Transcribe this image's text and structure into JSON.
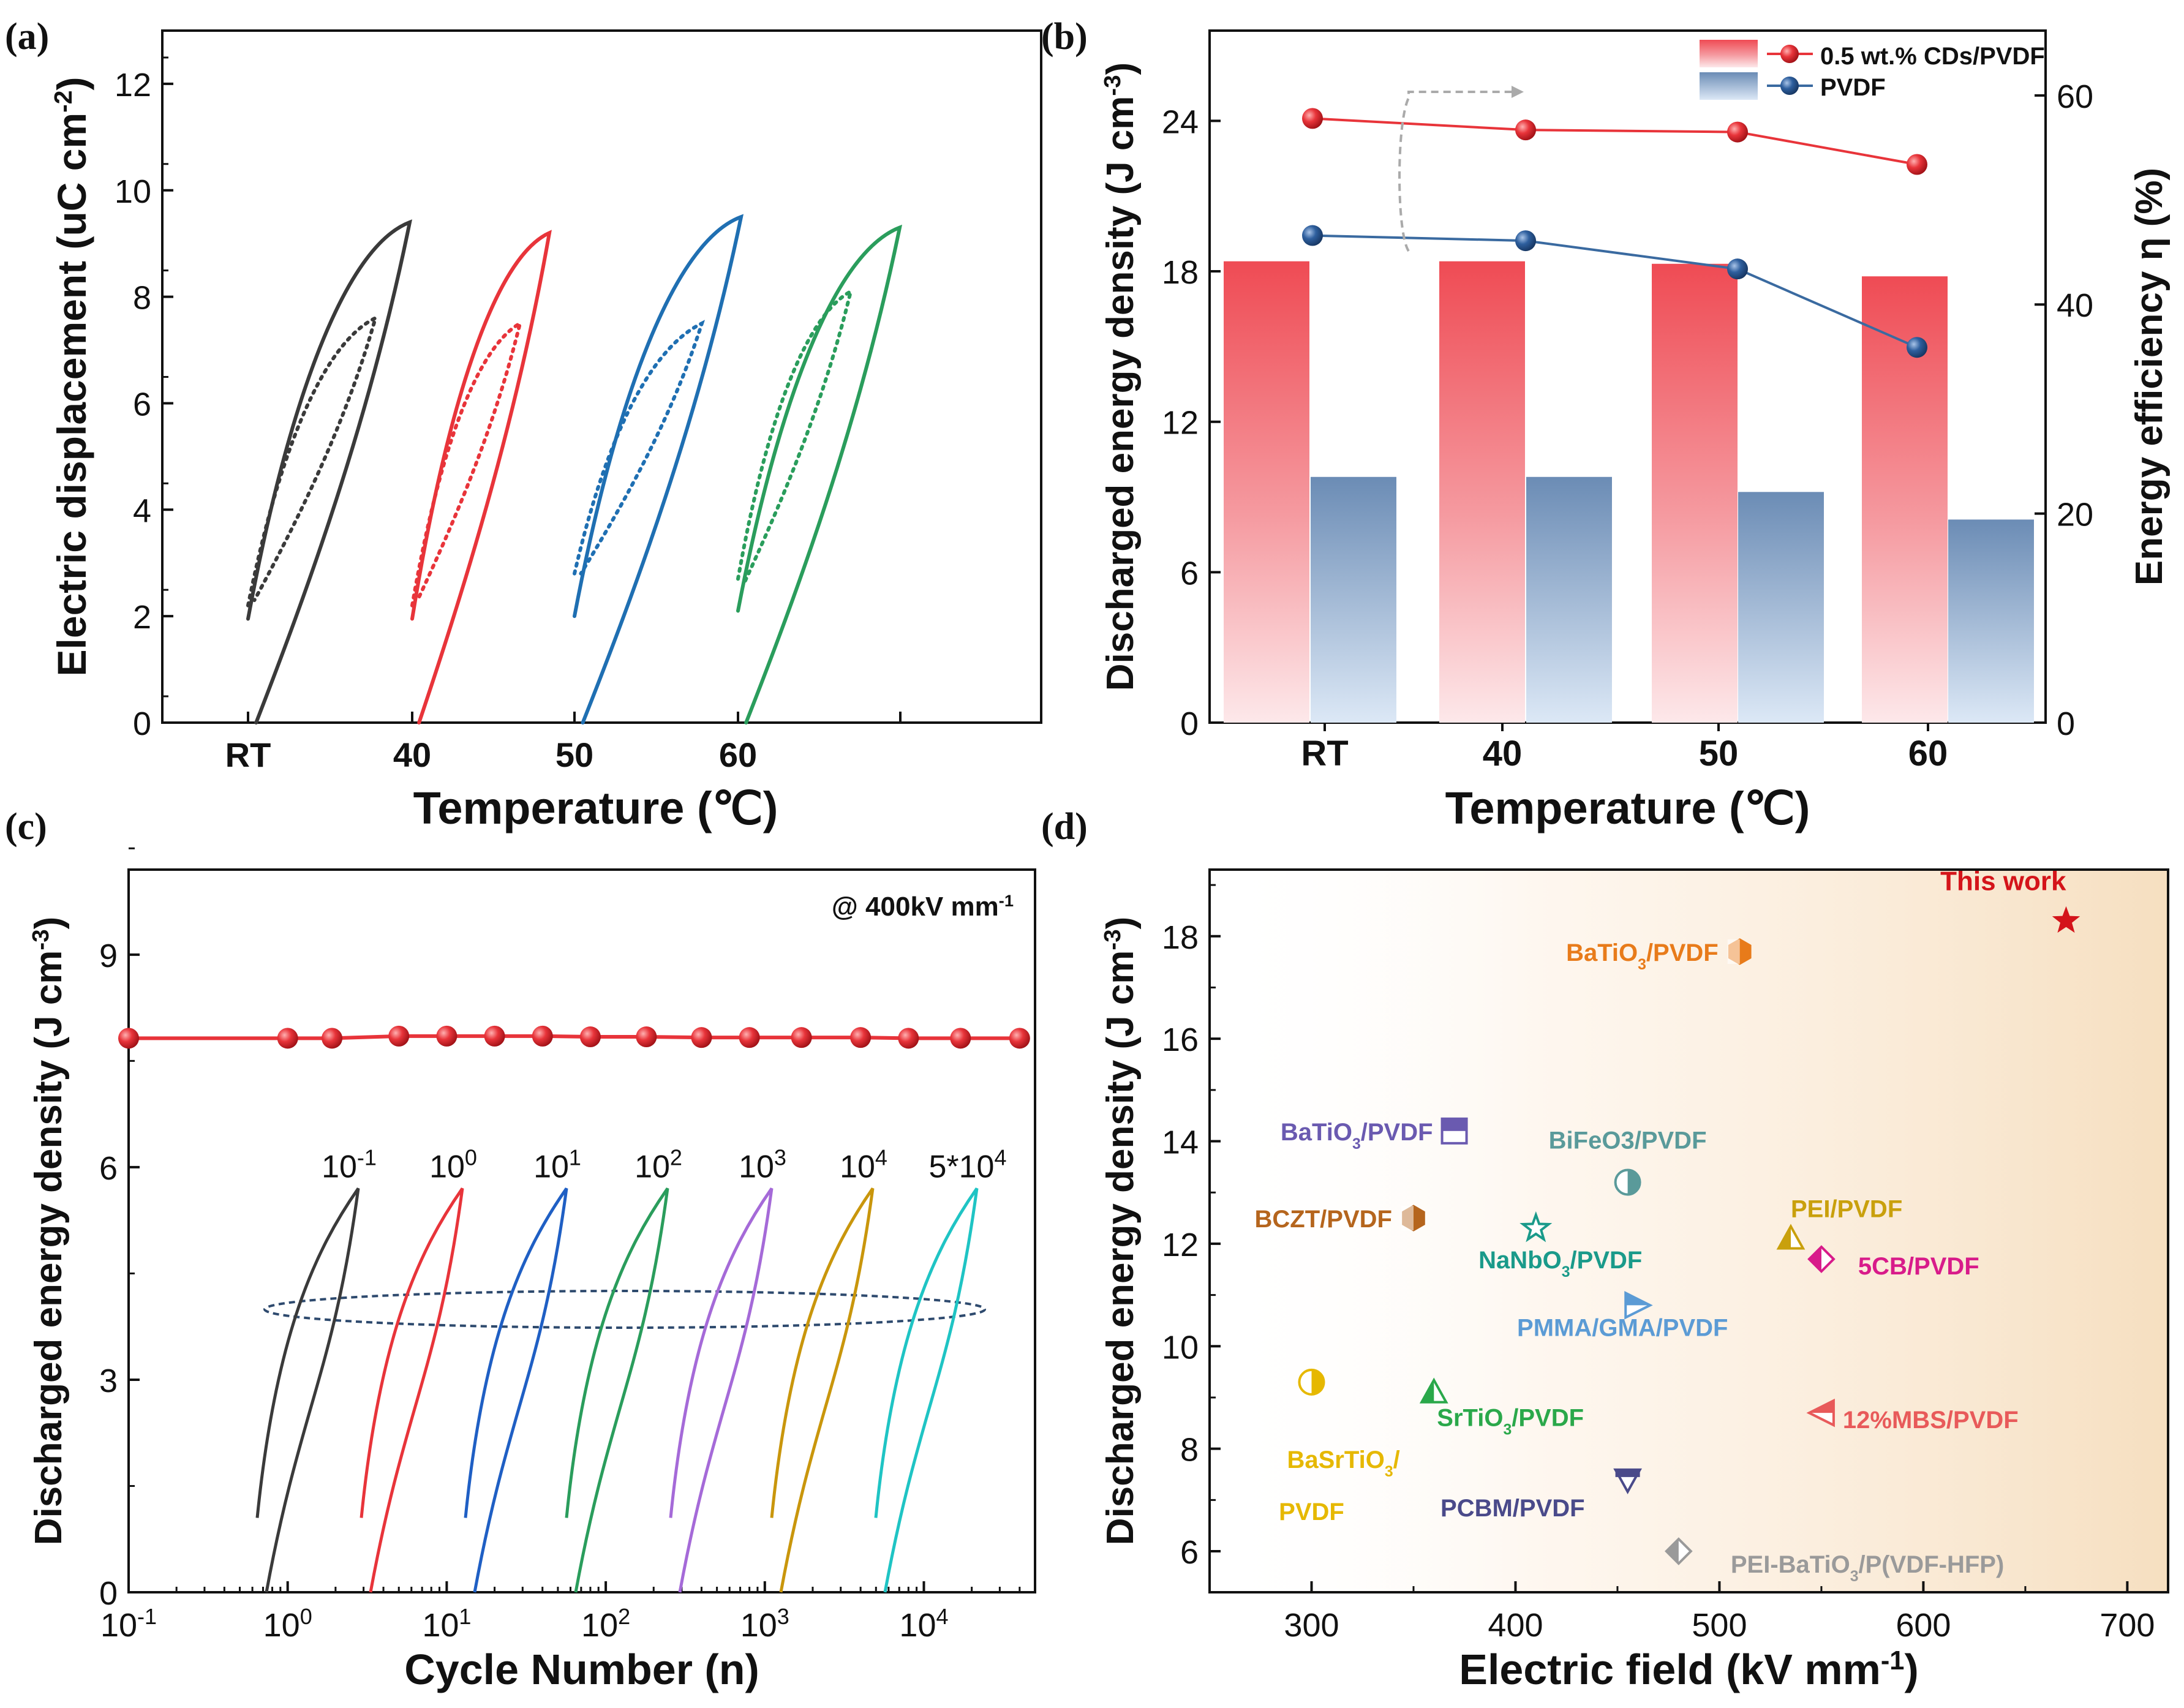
{
  "panels": [
    {
      "label": "(a)",
      "chart_data": {
        "type": "line",
        "xlabel": "Temperature (℃)",
        "ylabel": "Electric displacement (uC cm⁻²)",
        "ylim": [
          0,
          13
        ],
        "yticks": [
          0,
          2,
          4,
          6,
          8,
          10,
          12
        ],
        "xtick_labels": [
          "RT",
          "40",
          "50",
          "60"
        ],
        "series": [
          {
            "name": "RT",
            "color": "#3a3a3a",
            "solid": {
              "x0": 0,
              "xmax": 3.3,
              "dmax": 9.4,
              "d_start": 1.95,
              "d_end": 0
            },
            "dotted": {
              "x0": 0,
              "xmax": 2.6,
              "dmax": 7.6,
              "d_start": 2.2,
              "d_end": 2.3
            }
          },
          {
            "name": "40",
            "color": "#e8343a",
            "solid": {
              "x0": 0,
              "xmax": 2.8,
              "dmax": 9.2,
              "d_start": 1.95,
              "d_end": 0
            },
            "dotted": {
              "x0": 0,
              "xmax": 2.2,
              "dmax": 7.5,
              "d_start": 2.2,
              "d_end": 2.3
            }
          },
          {
            "name": "50",
            "color": "#1f6fb2",
            "solid": {
              "x0": 0,
              "xmax": 3.4,
              "dmax": 9.5,
              "d_start": 2.0,
              "d_end": 0
            },
            "dotted": {
              "x0": 0,
              "xmax": 2.6,
              "dmax": 7.5,
              "d_start": 2.8,
              "d_end": 2.8
            }
          },
          {
            "name": "60",
            "color": "#2a9d5c",
            "solid": {
              "x0": 0,
              "xmax": 3.3,
              "dmax": 9.3,
              "d_start": 2.1,
              "d_end": 0
            },
            "dotted": {
              "x0": 0,
              "xmax": 2.3,
              "dmax": 8.1,
              "d_start": 2.7,
              "d_end": 2.6
            }
          }
        ]
      }
    },
    {
      "label": "(b)",
      "chart_data": {
        "type": "bar",
        "categories": [
          "RT",
          "40",
          "50",
          "60"
        ],
        "xlabel": "Temperature (℃)",
        "ylabel": "Discharged energy density (J cm⁻³)",
        "ylabel_right": "Energy efficiency η (%)",
        "ylim": [
          0,
          27.6
        ],
        "yticks": [
          0,
          6,
          12,
          18,
          24
        ],
        "ylim_right": [
          0,
          66.2
        ],
        "yticks_right": [
          0,
          20,
          40,
          60
        ],
        "legend": [
          "0.5 wt.% CDs/PVDF",
          "PVDF"
        ],
        "series": [
          {
            "name": "0.5 wt.% CDs/PVDF",
            "bar_values": [
              18.4,
              18.4,
              18.3,
              17.8
            ],
            "line_values": [
              57.8,
              56.7,
              56.5,
              53.4
            ],
            "color": "#e8343a"
          },
          {
            "name": "PVDF",
            "bar_values": [
              9.8,
              9.8,
              9.2,
              8.1
            ],
            "line_values": [
              46.6,
              46.1,
              43.4,
              35.9
            ],
            "color": "#3a6aa0"
          }
        ]
      }
    },
    {
      "label": "(c)",
      "chart_data": {
        "type": "line",
        "xlabel": "Cycle Number (n)",
        "ylabel": "Discharged energy density (J cm⁻³)",
        "xscale": "log",
        "xlim": [
          0.1,
          50000
        ],
        "ylim": [
          0,
          10.2
        ],
        "yticks": [
          0,
          3,
          6,
          9
        ],
        "xtick_labels": [
          {
            "b": "10",
            "e": "-1"
          },
          {
            "b": "10",
            "e": "0"
          },
          {
            "b": "10",
            "e": "1"
          },
          {
            "b": "10",
            "e": "2"
          },
          {
            "b": "10",
            "e": "3"
          },
          {
            "b": "10",
            "e": "4"
          }
        ],
        "annotation": "@ 400kV mm⁻¹",
        "stability": {
          "x": [
            0.1,
            1,
            1.9,
            5,
            10,
            20,
            40,
            80,
            180,
            400,
            800,
            1700,
            4000,
            8000,
            17000,
            40000
          ],
          "y": [
            7.82,
            7.82,
            7.82,
            7.85,
            7.85,
            7.85,
            7.85,
            7.84,
            7.84,
            7.83,
            7.83,
            7.83,
            7.83,
            7.82,
            7.82,
            7.82
          ]
        },
        "loops": [
          {
            "b": "10",
            "e": "-1",
            "color": "#3a3a3a"
          },
          {
            "b": "10",
            "e": "0",
            "color": "#e8343a"
          },
          {
            "b": "10",
            "e": "1",
            "color": "#1f5fc4"
          },
          {
            "b": "10",
            "e": "2",
            "color": "#2a9d5c"
          },
          {
            "b": "10",
            "e": "3",
            "color": "#a56ad8"
          },
          {
            "b": "10",
            "e": "4",
            "color": "#c9960c"
          },
          {
            "b": "5*10",
            "e": "4",
            "color": "#1fc4c4"
          }
        ]
      }
    },
    {
      "label": "(d)",
      "chart_data": {
        "type": "scatter",
        "xlabel": "Electric field (kV mm⁻¹)",
        "ylabel": "Discharged energy density (J cm⁻³)",
        "xlim": [
          250,
          720
        ],
        "ylim": [
          5.2,
          19.3
        ],
        "xticks": [
          300,
          400,
          500,
          600,
          700
        ],
        "yticks": [
          6,
          8,
          10,
          12,
          14,
          16,
          18
        ],
        "points": [
          {
            "label": "This work",
            "x": 670,
            "y": 18.3,
            "color": "#d4141a",
            "shape": "star"
          },
          {
            "label": "BaTiO₃/PVDF",
            "x": 510,
            "y": 17.7,
            "color": "#e87b1a",
            "shape": "hexagon"
          },
          {
            "label": "BaTiO₃/PVDF",
            "x": 370,
            "y": 14.2,
            "color": "#6a5ab0",
            "shape": "square"
          },
          {
            "label": "BiFeO3/PVDF",
            "x": 455,
            "y": 13.2,
            "color": "#5a9a9a",
            "shape": "circle"
          },
          {
            "label": "BCZT/PVDF",
            "x": 350,
            "y": 12.5,
            "color": "#b5651d",
            "shape": "hexagon"
          },
          {
            "label": "NaNbO₃/PVDF",
            "x": 410,
            "y": 12.3,
            "color": "#1a9a8a",
            "shape": "star-open"
          },
          {
            "label": "PEI/PVDF",
            "x": 535,
            "y": 12.1,
            "color": "#c9a00c",
            "shape": "triangle"
          },
          {
            "label": "5CB/PVDF",
            "x": 550,
            "y": 11.7,
            "color": "#d81b8a",
            "shape": "diamond"
          },
          {
            "label": "PMMA/GMA/PVDF",
            "x": 460,
            "y": 10.8,
            "color": "#5b9bd5",
            "shape": "triangle-right"
          },
          {
            "label": "BaSrTiO₃/",
            "label2": "PVDF",
            "x": 300,
            "y": 9.3,
            "color": "#e6b800",
            "shape": "circle"
          },
          {
            "label": "SrTiO₃/PVDF",
            "x": 360,
            "y": 9.1,
            "color": "#2aa84a",
            "shape": "triangle"
          },
          {
            "label": "12%MBS/PVDF",
            "x": 550,
            "y": 8.7,
            "color": "#e85a5a",
            "shape": "triangle-left"
          },
          {
            "label": "PCBM/PVDF",
            "x": 455,
            "y": 7.4,
            "color": "#4a4a8a",
            "shape": "triangle-down"
          },
          {
            "label": "PEI-BaTiO₃/P(VDF-HFP)",
            "x": 480,
            "y": 6.0,
            "color": "#9a9a9a",
            "shape": "diamond"
          }
        ]
      }
    }
  ]
}
